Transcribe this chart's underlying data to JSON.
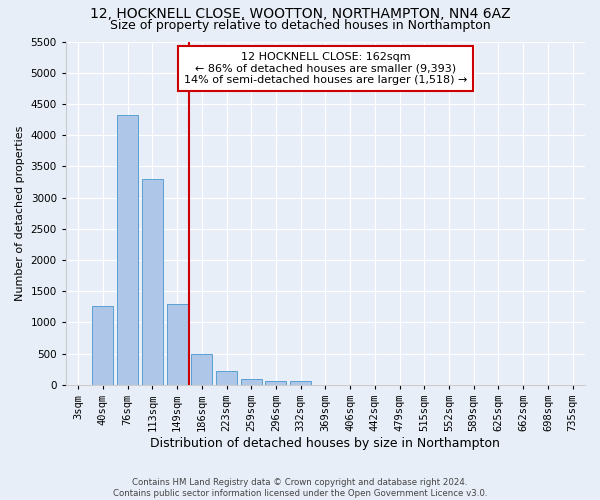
{
  "title1": "12, HOCKNELL CLOSE, WOOTTON, NORTHAMPTON, NN4 6AZ",
  "title2": "Size of property relative to detached houses in Northampton",
  "xlabel": "Distribution of detached houses by size in Northampton",
  "ylabel": "Number of detached properties",
  "footnote1": "Contains HM Land Registry data © Crown copyright and database right 2024.",
  "footnote2": "Contains public sector information licensed under the Open Government Licence v3.0.",
  "bar_labels": [
    "3sqm",
    "40sqm",
    "76sqm",
    "113sqm",
    "149sqm",
    "186sqm",
    "223sqm",
    "259sqm",
    "296sqm",
    "332sqm",
    "369sqm",
    "406sqm",
    "442sqm",
    "479sqm",
    "515sqm",
    "552sqm",
    "589sqm",
    "625sqm",
    "662sqm",
    "698sqm",
    "735sqm"
  ],
  "bar_values": [
    0,
    1270,
    4330,
    3300,
    1290,
    490,
    215,
    90,
    65,
    60,
    0,
    0,
    0,
    0,
    0,
    0,
    0,
    0,
    0,
    0,
    0
  ],
  "bar_color": "#aec6e8",
  "bar_edge_color": "#5a9fd4",
  "vline_x": 4.5,
  "vline_color": "#cc0000",
  "annotation_line1": "12 HOCKNELL CLOSE: 162sqm",
  "annotation_line2": "← 86% of detached houses are smaller (9,393)",
  "annotation_line3": "14% of semi-detached houses are larger (1,518) →",
  "annotation_box_color": "#ffffff",
  "annotation_box_edge": "#cc0000",
  "ylim": [
    0,
    5500
  ],
  "yticks": [
    0,
    500,
    1000,
    1500,
    2000,
    2500,
    3000,
    3500,
    4000,
    4500,
    5000,
    5500
  ],
  "bg_color": "#e8eef8",
  "axes_bg_color": "#e8eef8",
  "grid_color": "#ffffff",
  "title1_fontsize": 10,
  "title2_fontsize": 9,
  "xlabel_fontsize": 9,
  "ylabel_fontsize": 8,
  "tick_fontsize": 7.5,
  "annot_fontsize": 8
}
